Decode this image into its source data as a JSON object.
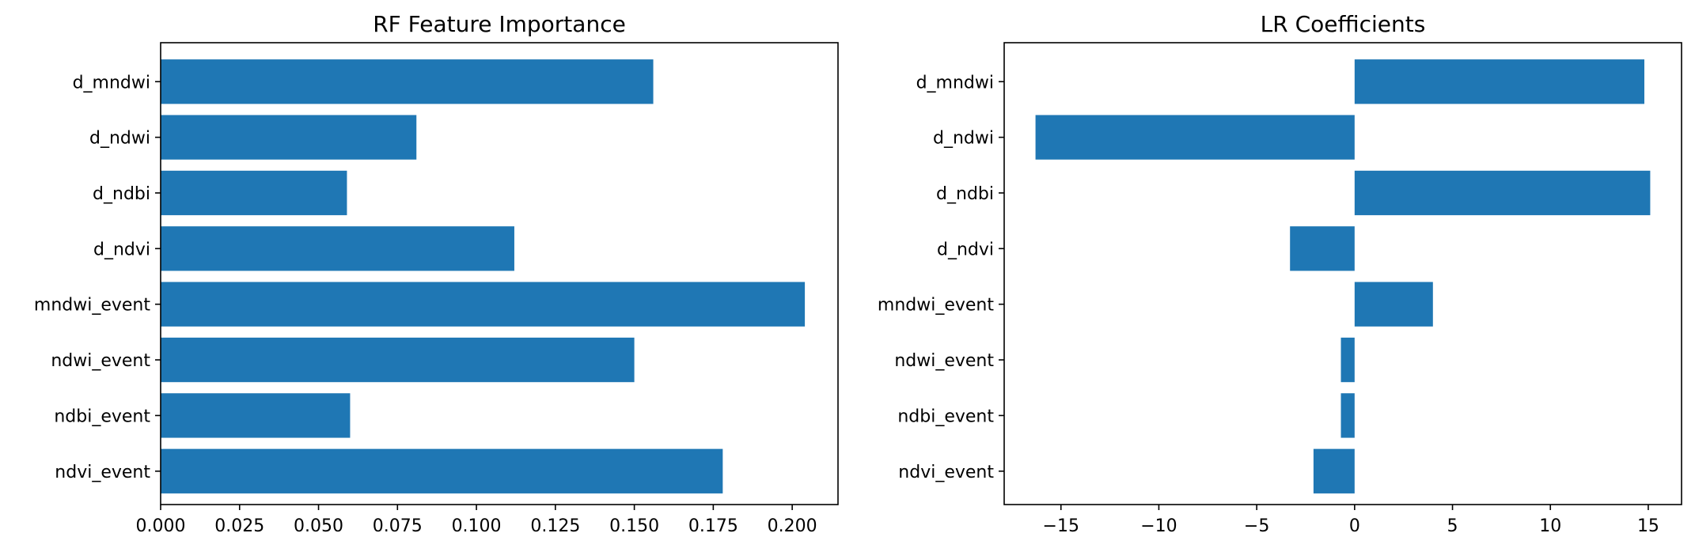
{
  "chart_data": [
    {
      "type": "bar",
      "orientation": "horizontal",
      "title": "RF Feature Importance",
      "xlabel": "",
      "ylabel": "",
      "categories": [
        "d_mndwi",
        "d_ndwi",
        "d_ndbi",
        "d_ndvi",
        "mndwi_event",
        "ndwi_event",
        "ndbi_event",
        "ndvi_event"
      ],
      "values": [
        0.156,
        0.081,
        0.059,
        0.112,
        0.204,
        0.15,
        0.06,
        0.178
      ],
      "xlim": [
        0,
        0.2145
      ],
      "xticks": [
        0.0,
        0.025,
        0.05,
        0.075,
        0.1,
        0.125,
        0.15,
        0.175,
        0.2
      ],
      "xtick_labels": [
        "0.000",
        "0.025",
        "0.050",
        "0.075",
        "0.100",
        "0.125",
        "0.150",
        "0.175",
        "0.200"
      ],
      "color": "#1f77b4",
      "grid": false
    },
    {
      "type": "bar",
      "orientation": "horizontal",
      "title": "LR Coefficients",
      "xlabel": "",
      "ylabel": "",
      "categories": [
        "d_mndwi",
        "d_ndwi",
        "d_ndbi",
        "d_ndvi",
        "mndwi_event",
        "ndwi_event",
        "ndbi_event",
        "ndvi_event"
      ],
      "values": [
        14.8,
        -16.3,
        15.1,
        -3.3,
        4.0,
        -0.7,
        -0.7,
        -2.1
      ],
      "xlim": [
        -17.9,
        16.7
      ],
      "xticks": [
        -15,
        -10,
        -5,
        0,
        5,
        10,
        15
      ],
      "xtick_labels": [
        "−15",
        "−10",
        "−5",
        "0",
        "5",
        "10",
        "15"
      ],
      "color": "#1f77b4",
      "grid": false
    }
  ]
}
